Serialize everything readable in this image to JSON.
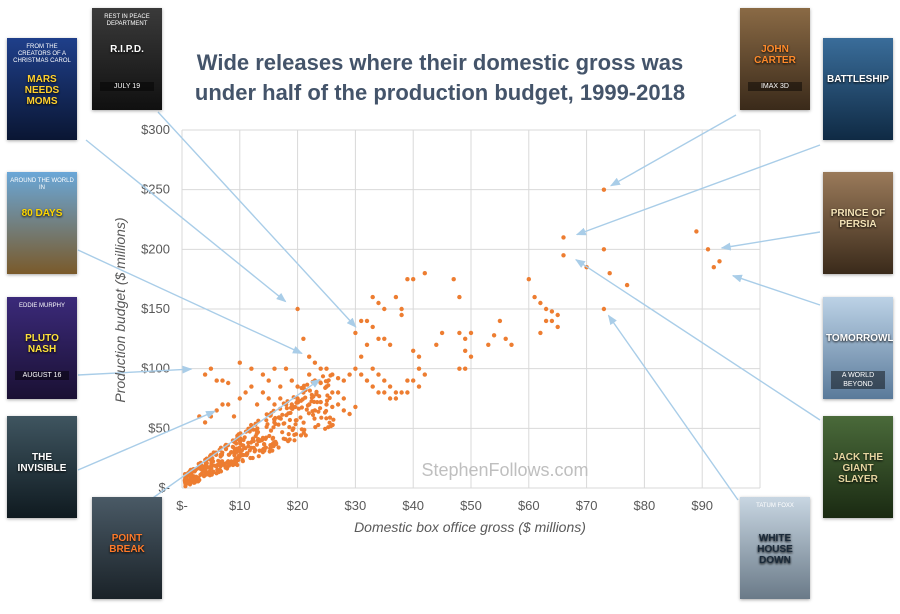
{
  "title_lines": [
    "Wide releases where their domestic gross was",
    "under half of the production budget, 1999-2018"
  ],
  "watermark": "StephenFollows.com",
  "chart_data": {
    "type": "scatter",
    "title": "Wide releases where their domestic gross was under half of the production budget, 1999-2018",
    "xlabel": "Domestic box office gross ($ millions)",
    "ylabel": "Production budget ($ millions)",
    "xlim": [
      0,
      100
    ],
    "ylim": [
      0,
      300
    ],
    "x_ticks": [
      0,
      10,
      20,
      30,
      40,
      50,
      60,
      70,
      80,
      90
    ],
    "x_tick_labels": [
      "$-",
      "$10",
      "$20",
      "$30",
      "$40",
      "$50",
      "$60",
      "$70",
      "$80",
      "$90"
    ],
    "y_ticks": [
      0,
      50,
      100,
      150,
      200,
      250,
      300
    ],
    "y_tick_labels": [
      "$-",
      "$50",
      "$100",
      "$150",
      "$200",
      "$250",
      "$300"
    ],
    "grid": true,
    "point_color": "#ed7d31",
    "arrow_color": "#a9cde8",
    "series": [
      {
        "name": "Wide releases",
        "points": [
          [
            73,
            250
          ],
          [
            89,
            215
          ],
          [
            91,
            200
          ],
          [
            93,
            190
          ],
          [
            92,
            185
          ],
          [
            66,
            210
          ],
          [
            66,
            195
          ],
          [
            73,
            200
          ],
          [
            70,
            185
          ],
          [
            74,
            180
          ],
          [
            77,
            170
          ],
          [
            73,
            150
          ],
          [
            60,
            175
          ],
          [
            61,
            160
          ],
          [
            62,
            155
          ],
          [
            63,
            150
          ],
          [
            64,
            148
          ],
          [
            65,
            145
          ],
          [
            64,
            140
          ],
          [
            65,
            135
          ],
          [
            62,
            130
          ],
          [
            63,
            140
          ],
          [
            55,
            140
          ],
          [
            54,
            128
          ],
          [
            53,
            120
          ],
          [
            56,
            125
          ],
          [
            57,
            120
          ],
          [
            47,
            175
          ],
          [
            48,
            160
          ],
          [
            48,
            130
          ],
          [
            49,
            125
          ],
          [
            49,
            115
          ],
          [
            50,
            110
          ],
          [
            48,
            100
          ],
          [
            49,
            100
          ],
          [
            50,
            130
          ],
          [
            45,
            130
          ],
          [
            44,
            120
          ],
          [
            39,
            175
          ],
          [
            40,
            175
          ],
          [
            42,
            180
          ],
          [
            37,
            160
          ],
          [
            38,
            150
          ],
          [
            38,
            145
          ],
          [
            40,
            115
          ],
          [
            41,
            110
          ],
          [
            41,
            100
          ],
          [
            42,
            95
          ],
          [
            39,
            90
          ],
          [
            40,
            90
          ],
          [
            41,
            85
          ],
          [
            33,
            160
          ],
          [
            34,
            155
          ],
          [
            35,
            150
          ],
          [
            32,
            140
          ],
          [
            33,
            135
          ],
          [
            34,
            125
          ],
          [
            35,
            125
          ],
          [
            36,
            120
          ],
          [
            31,
            110
          ],
          [
            33,
            100
          ],
          [
            34,
            95
          ],
          [
            35,
            90
          ],
          [
            36,
            85
          ],
          [
            37,
            80
          ],
          [
            38,
            80
          ],
          [
            39,
            80
          ],
          [
            30,
            130
          ],
          [
            31,
            140
          ],
          [
            32,
            120
          ],
          [
            30,
            100
          ],
          [
            31,
            95
          ],
          [
            32,
            90
          ],
          [
            33,
            85
          ],
          [
            34,
            80
          ],
          [
            35,
            80
          ],
          [
            36,
            75
          ],
          [
            37,
            75
          ],
          [
            20,
            150
          ],
          [
            21,
            125
          ],
          [
            22,
            110
          ],
          [
            23,
            105
          ],
          [
            24,
            100
          ],
          [
            25,
            100
          ],
          [
            26,
            95
          ],
          [
            27,
            92
          ],
          [
            28,
            90
          ],
          [
            29,
            95
          ],
          [
            22,
            95
          ],
          [
            23,
            90
          ],
          [
            24,
            88
          ],
          [
            25,
            85
          ],
          [
            26,
            80
          ],
          [
            27,
            80
          ],
          [
            28,
            75
          ],
          [
            5,
            100
          ],
          [
            4,
            95
          ],
          [
            6,
            90
          ],
          [
            7,
            90
          ],
          [
            8,
            88
          ],
          [
            10,
            105
          ],
          [
            12,
            100
          ],
          [
            14,
            95
          ],
          [
            16,
            100
          ],
          [
            18,
            100
          ],
          [
            19,
            90
          ],
          [
            20,
            85
          ],
          [
            15,
            90
          ],
          [
            17,
            85
          ],
          [
            3,
            60
          ],
          [
            4,
            55
          ],
          [
            5,
            60
          ],
          [
            6,
            65
          ],
          [
            7,
            70
          ],
          [
            8,
            70
          ],
          [
            9,
            60
          ],
          [
            10,
            75
          ],
          [
            11,
            80
          ],
          [
            12,
            85
          ],
          [
            13,
            70
          ],
          [
            14,
            80
          ],
          [
            15,
            75
          ],
          [
            16,
            70
          ],
          [
            17,
            75
          ],
          [
            18,
            70
          ],
          [
            19,
            70
          ],
          [
            20,
            75
          ],
          [
            21,
            80
          ],
          [
            22,
            70
          ],
          [
            23,
            65
          ],
          [
            24,
            72
          ],
          [
            25,
            70
          ],
          [
            26,
            68
          ],
          [
            27,
            70
          ],
          [
            28,
            65
          ],
          [
            29,
            62
          ],
          [
            30,
            68
          ]
        ]
      }
    ],
    "annotations": [
      {
        "movie": "John Carter",
        "target": [
          73,
          250
        ]
      },
      {
        "movie": "Battleship",
        "target": [
          67,
          210
        ]
      },
      {
        "movie": "Prince of Persia",
        "target": [
          92,
          200
        ]
      },
      {
        "movie": "Tomorrowland",
        "target": [
          94,
          180
        ]
      },
      {
        "movie": "Jack the Giant Slayer",
        "target": [
          67,
          195
        ]
      },
      {
        "movie": "White House Down",
        "target": [
          73,
          150
        ]
      },
      {
        "movie": "R.I.P.D.",
        "target": [
          31,
          130
        ]
      },
      {
        "movie": "Mars Needs Moms",
        "target": [
          19,
          152
        ]
      },
      {
        "movie": "Around the World in 80 Days",
        "target": [
          22,
          110
        ]
      },
      {
        "movie": "The Adventures of Pluto Nash",
        "target": [
          3,
          100
        ]
      },
      {
        "movie": "The Invisible",
        "target": [
          7,
          67
        ]
      },
      {
        "movie": "Point Break",
        "target": [
          25,
          95
        ]
      }
    ]
  },
  "posters": [
    {
      "name": "poster-mars-needs-moms",
      "title": "MARS NEEDS MOMS",
      "tagline": "FROM THE CREATORS OF A CHRISTMAS CAROL",
      "badge": "",
      "bg": "#1f3f8a",
      "bg2": "#0a1633",
      "title_color": "#ffd02e"
    },
    {
      "name": "poster-ripd",
      "title": "R.I.P.D.",
      "tagline": "REST IN PEACE DEPARTMENT",
      "badge": "JULY 19",
      "bg": "#3a3a3a",
      "bg2": "#101010",
      "title_color": "#ffffff"
    },
    {
      "name": "poster-john-carter",
      "title": "JOHN CARTER",
      "tagline": "",
      "badge": "IMAX 3D",
      "bg": "#8a6a45",
      "bg2": "#3a2a1a",
      "title_color": "#ff8a2a"
    },
    {
      "name": "poster-battleship",
      "title": "BATTLESHIP",
      "tagline": "",
      "badge": "",
      "bg": "#3a6d9a",
      "bg2": "#0f2a44",
      "title_color": "#ffffff"
    },
    {
      "name": "poster-80-days",
      "title": "80 DAYS",
      "tagline": "AROUND THE WORLD IN",
      "badge": "",
      "bg": "#6aa7d8",
      "bg2": "#7a5a2a",
      "title_color": "#ffd700"
    },
    {
      "name": "poster-prince-of-persia",
      "title": "PRINCE OF PERSIA",
      "tagline": "",
      "badge": "",
      "bg": "#9a7a5a",
      "bg2": "#3a2a1a",
      "title_color": "#f3e2b6"
    },
    {
      "name": "poster-pluto-nash",
      "title": "PLUTO NASH",
      "tagline": "EDDIE MURPHY",
      "badge": "AUGUST 16",
      "bg": "#3b2a7a",
      "bg2": "#1a1033",
      "title_color": "#ffe23a"
    },
    {
      "name": "poster-tomorrowland",
      "title": "TOMORROWLAND",
      "tagline": "",
      "badge": "A WORLD BEYOND",
      "bg": "#bcd2e6",
      "bg2": "#5a7a9a",
      "title_color": "#ffffff"
    },
    {
      "name": "poster-the-invisible",
      "title": "THE INVISIBLE",
      "tagline": "",
      "badge": "",
      "bg": "#3f5560",
      "bg2": "#0f1a20",
      "title_color": "#ffffff"
    },
    {
      "name": "poster-jack-giant-slayer",
      "title": "JACK THE GIANT SLAYER",
      "tagline": "",
      "badge": "",
      "bg": "#4a6a3a",
      "bg2": "#1a2a12",
      "title_color": "#e6d6a0"
    },
    {
      "name": "poster-point-break",
      "title": "POINT BREAK",
      "tagline": "",
      "badge": "",
      "bg": "#4a5a66",
      "bg2": "#1a2228",
      "title_color": "#ff7a2a"
    },
    {
      "name": "poster-white-house-down",
      "title": "WHITE HOUSE DOWN",
      "tagline": "TATUM   FOXX",
      "badge": "",
      "bg": "#c8d6e2",
      "bg2": "#6a7a88",
      "title_color": "#1a2a3a"
    }
  ]
}
